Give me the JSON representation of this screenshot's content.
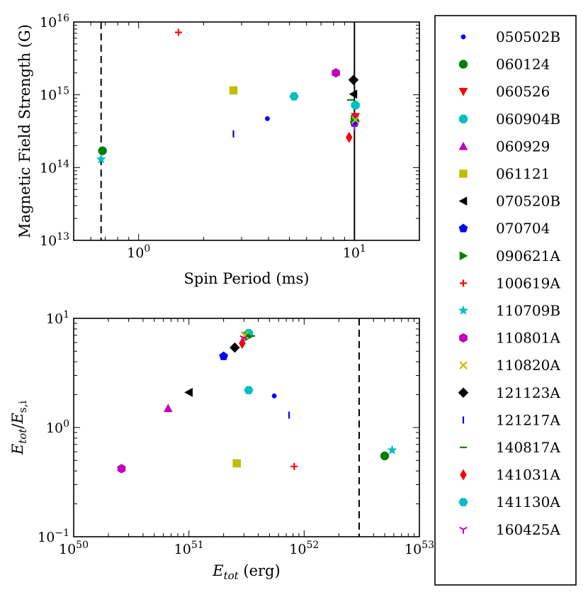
{
  "chart_data": [
    {
      "type": "scatter",
      "xlabel": "Spin Period (ms)",
      "ylabel": "Magnetic Field Strength (G)",
      "xscale": "log",
      "yscale": "log",
      "xlim": [
        0.5,
        20
      ],
      "ylim": [
        10000000000000.0,
        1e+16
      ],
      "x_ticks": [
        {
          "value": 1,
          "base": "10",
          "exp": "0"
        },
        {
          "value": 10,
          "base": "10",
          "exp": "1"
        }
      ],
      "y_ticks": [
        {
          "value": 10000000000000.0,
          "base": "10",
          "exp": "13"
        },
        {
          "value": 100000000000000.0,
          "base": "10",
          "exp": "14"
        },
        {
          "value": 1000000000000000.0,
          "base": "10",
          "exp": "15"
        },
        {
          "value": 1e+16,
          "base": "10",
          "exp": "16"
        }
      ],
      "reference_lines": [
        {
          "orientation": "vertical",
          "x": 0.67,
          "style": "dashed"
        },
        {
          "orientation": "vertical",
          "x": 10,
          "style": "solid"
        }
      ],
      "points": [
        {
          "series": "050502B",
          "x": 3.95,
          "y": 470000000000000.0
        },
        {
          "series": "060124",
          "x": 0.68,
          "y": 170000000000000.0
        },
        {
          "series": "060526",
          "x": 10.1,
          "y": 500000000000000.0
        },
        {
          "series": "060904B",
          "x": 10.1,
          "y": 720000000000000.0
        },
        {
          "series": "060929",
          "x": 10.1,
          "y": 480000000000000.0
        },
        {
          "series": "061121",
          "x": 2.75,
          "y": 1150000000000000.0
        },
        {
          "series": "070520B",
          "x": 9.9,
          "y": 1020000000000000.0
        },
        {
          "series": "070704",
          "x": 10.0,
          "y": 410000000000000.0
        },
        {
          "series": "090621A",
          "x": 10.0,
          "y": 460000000000000.0
        },
        {
          "series": "100619A",
          "x": 1.53,
          "y": 7200000000000000.0
        },
        {
          "series": "110709B",
          "x": 0.67,
          "y": 130000000000000.0
        },
        {
          "series": "110801A",
          "x": 8.2,
          "y": 2000000000000000.0
        },
        {
          "series": "110820A",
          "x": 10.1,
          "y": 450000000000000.0
        },
        {
          "series": "121123A",
          "x": 9.9,
          "y": 1600000000000000.0
        },
        {
          "series": "121217A",
          "x": 2.75,
          "y": 290000000000000.0
        },
        {
          "series": "140817A",
          "x": 9.6,
          "y": 850000000000000.0
        },
        {
          "series": "141031A",
          "x": 9.45,
          "y": 260000000000000.0
        },
        {
          "series": "141130A",
          "x": 5.25,
          "y": 950000000000000.0
        },
        {
          "series": "160425A",
          "x": 10.0,
          "y": 370000000000000.0
        }
      ]
    },
    {
      "type": "scatter",
      "xscale": "log",
      "yscale": "log",
      "xlim": [
        1e+50,
        1e+53
      ],
      "ylim": [
        0.1,
        10
      ],
      "x_ticks": [
        {
          "value": 1e+50,
          "base": "10",
          "exp": "50"
        },
        {
          "value": 1e+51,
          "base": "10",
          "exp": "51"
        },
        {
          "value": 1e+52,
          "base": "10",
          "exp": "52"
        },
        {
          "value": 1e+53,
          "base": "10",
          "exp": "53"
        }
      ],
      "y_ticks": [
        {
          "value": 0.1,
          "base": "10",
          "exp": "−1"
        },
        {
          "value": 1,
          "base": "10",
          "exp": "0"
        },
        {
          "value": 10,
          "base": "10",
          "exp": "1"
        }
      ],
      "reference_lines": [
        {
          "orientation": "vertical",
          "x": 3e+52,
          "style": "dashed"
        }
      ],
      "points": [
        {
          "series": "050502B",
          "x": 5.5e+51,
          "y": 1.95
        },
        {
          "series": "060124",
          "x": 5e+52,
          "y": 0.55
        },
        {
          "series": "060526",
          "x": 3.15e+51,
          "y": 6.9
        },
        {
          "series": "060904B",
          "x": 3.3e+51,
          "y": 7.3
        },
        {
          "series": "060929",
          "x": 6.6e+50,
          "y": 1.5
        },
        {
          "series": "061121",
          "x": 2.6e+51,
          "y": 0.47
        },
        {
          "series": "070520B",
          "x": 1e+51,
          "y": 2.1
        },
        {
          "series": "070704",
          "x": 2e+51,
          "y": 4.5
        },
        {
          "series": "090621A",
          "x": 3.3e+51,
          "y": 6.8
        },
        {
          "series": "100619A",
          "x": 8.2e+51,
          "y": 0.44
        },
        {
          "series": "110709B",
          "x": 5.8e+52,
          "y": 0.62
        },
        {
          "series": "110801A",
          "x": 2.6e+50,
          "y": 0.42
        },
        {
          "series": "110820A",
          "x": 3.05e+51,
          "y": 7.0
        },
        {
          "series": "121123A",
          "x": 2.5e+51,
          "y": 5.4
        },
        {
          "series": "121217A",
          "x": 7.4e+51,
          "y": 1.3
        },
        {
          "series": "140817A",
          "x": 3.5e+51,
          "y": 6.9
        },
        {
          "series": "141031A",
          "x": 2.9e+51,
          "y": 5.9
        },
        {
          "series": "141130A",
          "x": 3.3e+51,
          "y": 2.2
        },
        {
          "series": "160425A",
          "x": 3e+51,
          "y": 6.6
        }
      ]
    }
  ],
  "axis_text": {
    "bottom_xlabel_main": "E",
    "bottom_xlabel_sub": "tot",
    "bottom_xlabel_unit": "(erg)",
    "bottom_ylabel_num": "E",
    "bottom_ylabel_num_sub": "tot",
    "bottom_ylabel_slash": "/",
    "bottom_ylabel_den": "E",
    "bottom_ylabel_den_sub": "s,i"
  },
  "legend": [
    {
      "label": "050502B",
      "marker": "point",
      "color": "#0000ff"
    },
    {
      "label": "060124",
      "marker": "circle",
      "color": "#008000"
    },
    {
      "label": "060526",
      "marker": "triangle-down",
      "color": "#ff0000"
    },
    {
      "label": "060904B",
      "marker": "octagon",
      "color": "#00bfbf"
    },
    {
      "label": "060929",
      "marker": "triangle-up",
      "color": "#bf00bf"
    },
    {
      "label": "061121",
      "marker": "square",
      "color": "#bfbf00"
    },
    {
      "label": "070520B",
      "marker": "triangle-left",
      "color": "#000000"
    },
    {
      "label": "070704",
      "marker": "pentagon",
      "color": "#0000ff"
    },
    {
      "label": "090621A",
      "marker": "triangle-right",
      "color": "#008000"
    },
    {
      "label": "100619A",
      "marker": "plus",
      "color": "#ff0000"
    },
    {
      "label": "110709B",
      "marker": "star",
      "color": "#00bfbf"
    },
    {
      "label": "110801A",
      "marker": "hexagon",
      "color": "#bf00bf"
    },
    {
      "label": "110820A",
      "marker": "x",
      "color": "#bfbf00"
    },
    {
      "label": "121123A",
      "marker": "diamond",
      "color": "#000000"
    },
    {
      "label": "121217A",
      "marker": "vline",
      "color": "#0000ff"
    },
    {
      "label": "140817A",
      "marker": "hline",
      "color": "#008000"
    },
    {
      "label": "141031A",
      "marker": "thin-diamond",
      "color": "#ff0000"
    },
    {
      "label": "141130A",
      "marker": "hexagon2",
      "color": "#00bfbf"
    },
    {
      "label": "160425A",
      "marker": "tri-down",
      "color": "#bf00bf"
    }
  ]
}
